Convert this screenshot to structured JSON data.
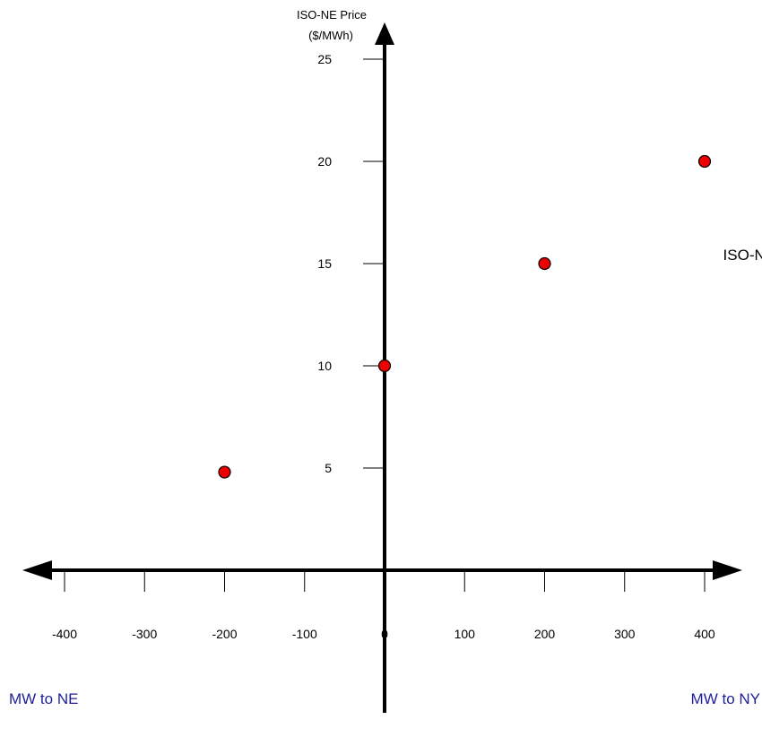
{
  "chart_data": {
    "type": "scatter",
    "ylabel_line1": "ISO-NE Price",
    "ylabel_line2": "($/MWh)",
    "x_ticks": [
      -400,
      -300,
      -200,
      -100,
      0,
      100,
      200,
      300,
      400
    ],
    "x_tick_labels": [
      "-400",
      "-300",
      "-200",
      "-100",
      "0",
      "100",
      "200",
      "300",
      "400"
    ],
    "y_ticks": [
      5,
      10,
      15,
      20,
      25
    ],
    "y_tick_labels": [
      "5",
      "10",
      "15",
      "20",
      "25"
    ],
    "xlim": [
      -450,
      450
    ],
    "ylim": [
      0,
      27
    ],
    "grid": false,
    "series": [
      {
        "points": [
          {
            "x": -200,
            "y": 4.8
          },
          {
            "x": 0,
            "y": 10
          },
          {
            "x": 200,
            "y": 15
          },
          {
            "x": 400,
            "y": 20
          }
        ],
        "color": "#ee0000"
      }
    ],
    "annotations": [
      {
        "text": "ISO-NE",
        "x": 395,
        "y": 15.3
      }
    ],
    "left_direction_label": "MW to NE",
    "right_direction_label": "MW to NY",
    "direction_label_color": "#1f1f9a",
    "axis_color": "#000000"
  }
}
